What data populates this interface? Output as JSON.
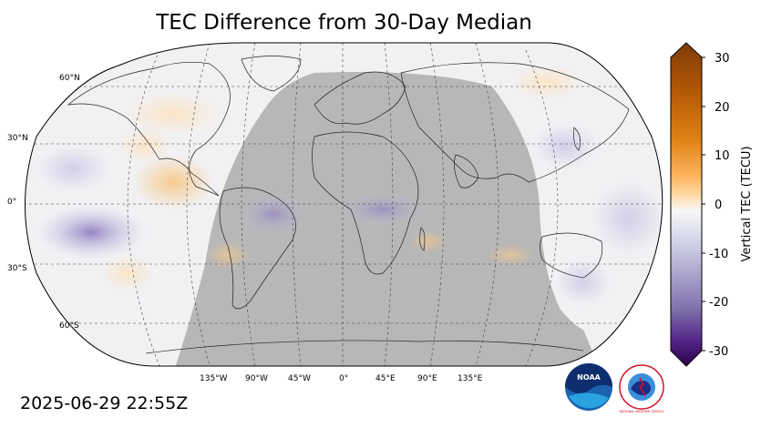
{
  "title": "TEC Difference from 30-Day Median",
  "timestamp": "2025-06-29 22:55Z",
  "lat_labels": [
    "60°N",
    "30°N",
    "0°",
    "30°S",
    "60°S"
  ],
  "lon_labels": [
    "135°W",
    "90°W",
    "45°W",
    "0°",
    "45°E",
    "90°E",
    "135°E"
  ],
  "colorbar": {
    "label": "Vertical TEC (TECU)",
    "ticks": [
      "30",
      "20",
      "10",
      "0",
      "-10",
      "-20",
      "-30"
    ],
    "min": -30,
    "max": 30
  },
  "logos": {
    "noaa_text": "NOAA",
    "nws_text": "NATIONAL WEATHER SERVICE"
  },
  "colors": {
    "night_shade": "#b3b3b3",
    "positive": "#e08a2a",
    "negative": "#6a5aa5",
    "neutral": "#f2f2f2"
  }
}
